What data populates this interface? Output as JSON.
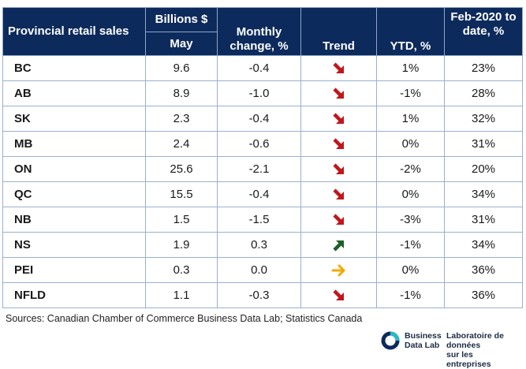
{
  "table": {
    "headers": {
      "title": "Provincial retail sales",
      "billions_top": "Billions $",
      "billions_bottom": "May",
      "monthly": "Monthly change, %",
      "trend": "Trend",
      "ytd": "YTD, %",
      "feb": "Feb-2020 to date, %"
    },
    "rows": [
      {
        "province": "BC",
        "billions": "9.6",
        "monthly": "-0.4",
        "trend": "down",
        "ytd": "1%",
        "feb": "23%"
      },
      {
        "province": "AB",
        "billions": "8.9",
        "monthly": "-1.0",
        "trend": "down",
        "ytd": "-1%",
        "feb": "28%"
      },
      {
        "province": "SK",
        "billions": "2.3",
        "monthly": "-0.4",
        "trend": "down",
        "ytd": "1%",
        "feb": "32%"
      },
      {
        "province": "MB",
        "billions": "2.4",
        "monthly": "-0.6",
        "trend": "down",
        "ytd": "0%",
        "feb": "31%"
      },
      {
        "province": "ON",
        "billions": "25.6",
        "monthly": "-2.1",
        "trend": "down",
        "ytd": "-2%",
        "feb": "20%"
      },
      {
        "province": "QC",
        "billions": "15.5",
        "monthly": "-0.4",
        "trend": "down",
        "ytd": "0%",
        "feb": "34%"
      },
      {
        "province": "NB",
        "billions": "1.5",
        "monthly": "-1.5",
        "trend": "down",
        "ytd": "-3%",
        "feb": "31%"
      },
      {
        "province": "NS",
        "billions": "1.9",
        "monthly": "0.3",
        "trend": "up",
        "ytd": "-1%",
        "feb": "34%"
      },
      {
        "province": "PEI",
        "billions": "0.3",
        "monthly": "0.0",
        "trend": "flat",
        "ytd": "0%",
        "feb": "36%"
      },
      {
        "province": "NFLD",
        "billions": "1.1",
        "monthly": "-0.3",
        "trend": "down",
        "ytd": "-1%",
        "feb": "36%"
      }
    ]
  },
  "colors": {
    "header_bg": "#0d2a5c",
    "trend_down": "#c0161c",
    "trend_up": "#1e5e2a",
    "trend_flat": "#f2a900"
  },
  "source": "Sources: Canadian Chamber of Commerce Business Data Lab; Statistics Canada",
  "logo": {
    "en_line1": "Business",
    "en_line2": "Data Lab",
    "fr_line1": "Laboratoire de données",
    "fr_line2": "sur les entreprises"
  }
}
